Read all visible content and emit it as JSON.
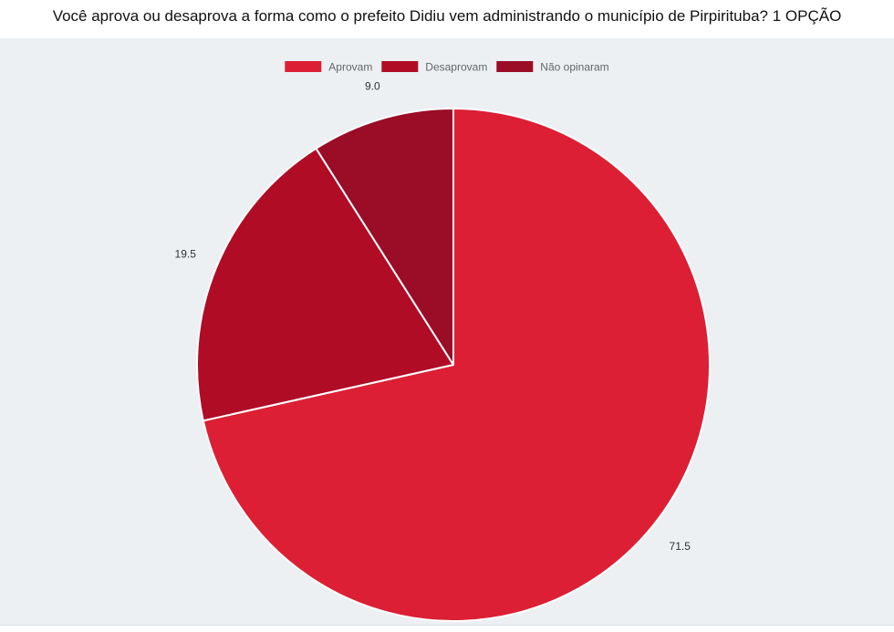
{
  "chart_data": {
    "type": "pie",
    "title": "Você aprova ou desaprova a forma como o prefeito Didiu vem administrando o município de Pirpirituba? 1 OPÇÃO",
    "slices": [
      {
        "label": "Aprovam",
        "value": 71.5,
        "value_label": "71.5",
        "color": "#dc1f34"
      },
      {
        "label": "Desaprovam",
        "value": 19.5,
        "value_label": "19.5",
        "color": "#b00c26"
      },
      {
        "label": "Não opinaram",
        "value": 9.0,
        "value_label": "9.0",
        "color": "#9b0c26"
      }
    ],
    "legend_position": "top",
    "start_angle": "12 o'clock",
    "direction": "clockwise"
  }
}
